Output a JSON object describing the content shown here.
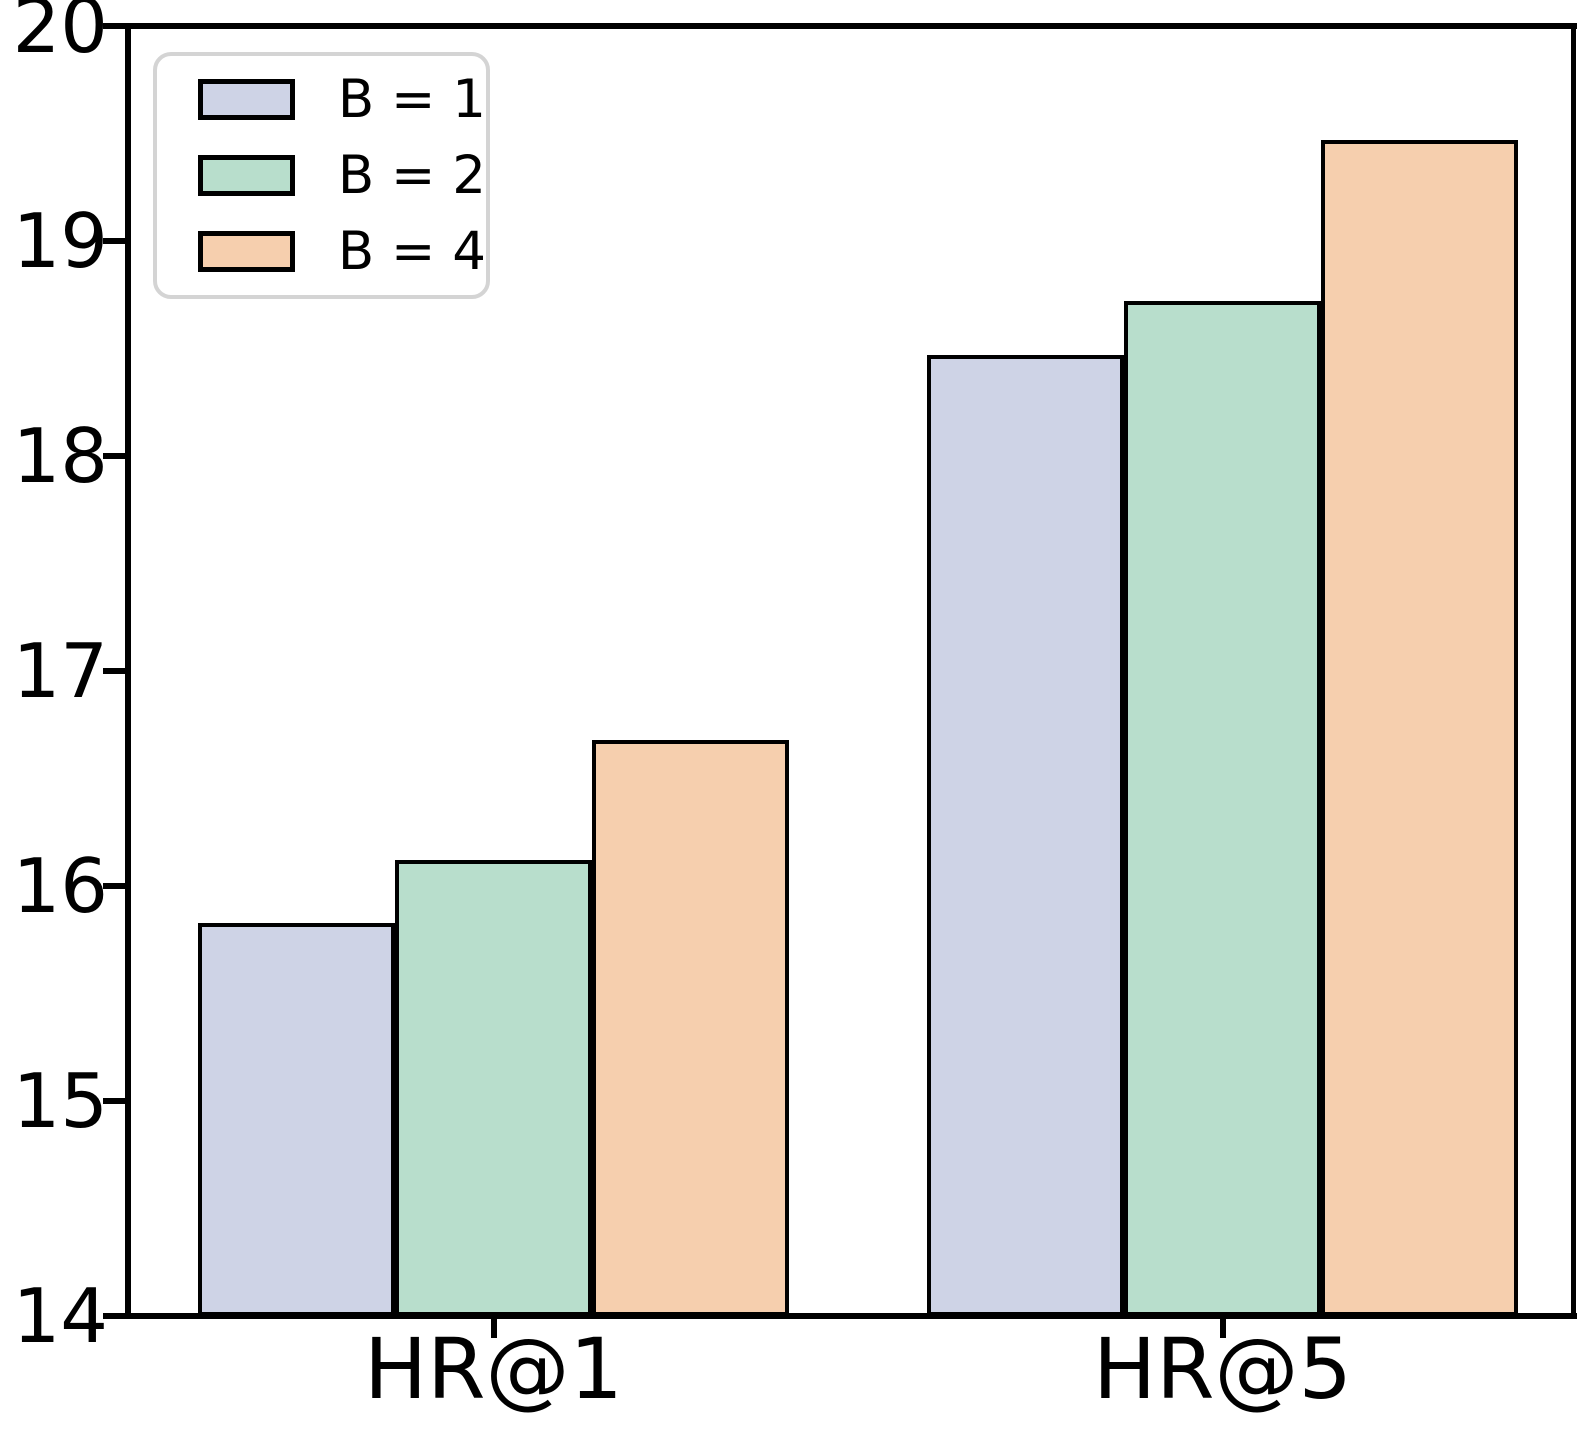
{
  "chart_data": {
    "type": "bar",
    "categories": [
      "HR@1",
      "HR@5"
    ],
    "series": [
      {
        "name": "B = 1",
        "values": [
          15.83,
          18.47
        ],
        "color": "#CED3E6"
      },
      {
        "name": "B = 2",
        "values": [
          16.12,
          18.72
        ],
        "color": "#B8DECC"
      },
      {
        "name": "B = 4",
        "values": [
          16.68,
          19.47
        ],
        "color": "#F6CFAE"
      }
    ],
    "title": "",
    "xlabel": "",
    "ylabel": "",
    "ylim": [
      14,
      20
    ],
    "yticks": [
      14,
      15,
      16,
      17,
      18,
      19,
      20
    ],
    "grid": false,
    "legend_position": "upper left",
    "bar_edge_color": "#000000",
    "axis_color": "#000000"
  }
}
